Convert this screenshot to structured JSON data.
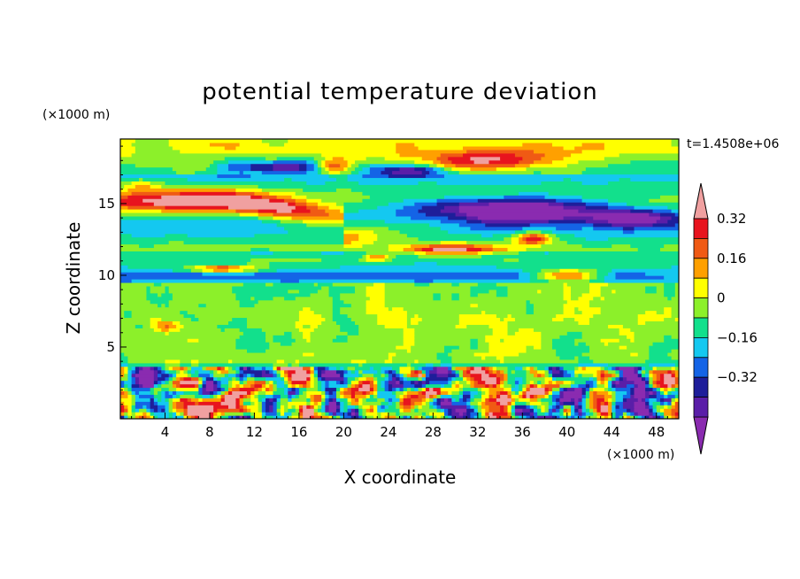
{
  "chart_data": {
    "type": "heatmap",
    "title": "potential temperature deviation",
    "xlabel": "X coordinate",
    "ylabel": "Z coordinate",
    "x_unit": "(×1000 m)",
    "y_unit": "(×1000 m)",
    "time_label": "t=1.4508e+06",
    "xlim": [
      0,
      50
    ],
    "ylim": [
      0,
      19.5
    ],
    "x_ticks": [
      4,
      8,
      12,
      16,
      20,
      24,
      28,
      32,
      36,
      40,
      44,
      48
    ],
    "y_ticks": [
      5,
      10,
      15
    ],
    "colorbar": {
      "levels": [
        -0.4,
        -0.32,
        -0.24,
        -0.16,
        -0.08,
        0,
        0.08,
        0.16,
        0.24,
        0.32,
        0.4
      ],
      "labeled_ticks": [
        0.32,
        0.16,
        0,
        -0.16,
        -0.32
      ],
      "colors": [
        "#8a2bb0",
        "#5a1ea8",
        "#1e1e9a",
        "#1464e6",
        "#14c8f0",
        "#12e08c",
        "#8cf02a",
        "#ffff00",
        "#ffa000",
        "#f05a14",
        "#e8141e",
        "#f0a0a0"
      ],
      "extend": "both"
    },
    "features": [
      {
        "kind": "warm band",
        "level": 0.4,
        "x_range": [
          0,
          28
        ],
        "z_range": [
          12.5,
          16.5
        ]
      },
      {
        "kind": "cold band",
        "level": -0.4,
        "x_range": [
          26,
          44
        ],
        "z_range": [
          13.5,
          15.6
        ]
      },
      {
        "kind": "warm patches",
        "level": 0.4,
        "x_range": [
          6,
          42
        ],
        "z_range": [
          9.5,
          12.5
        ]
      },
      {
        "kind": "background",
        "level": 0.04,
        "x_range": [
          0,
          50
        ],
        "z_range": [
          3.5,
          9.5
        ]
      },
      {
        "kind": "boundary-layer eddies",
        "level": "mixed",
        "x_range": [
          0,
          50
        ],
        "z_range": [
          0,
          3.5
        ]
      }
    ]
  }
}
